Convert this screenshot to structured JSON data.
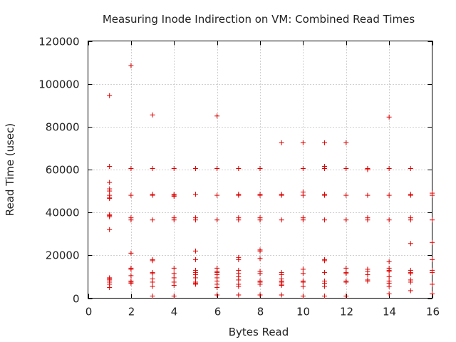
{
  "chart_data": {
    "type": "scatter",
    "title": "Measuring Inode Indirection on VM: Combined Read Times",
    "xlabel": "Bytes Read",
    "ylabel": "Read Time (usec)",
    "xlim": [
      0,
      16
    ],
    "ylim": [
      0,
      120000
    ],
    "xticks": [
      0,
      2,
      4,
      6,
      8,
      10,
      12,
      14,
      16
    ],
    "xtick_labels": [
      "0",
      "2",
      "4",
      "6",
      "8",
      "10",
      "12",
      "14",
      "16"
    ],
    "yticks": [
      0,
      20000,
      40000,
      60000,
      80000,
      100000,
      120000
    ],
    "ytick_labels": [
      "0",
      "20000",
      "40000",
      "60000",
      "80000",
      "100000",
      "120000"
    ],
    "grid": true,
    "marker": "+",
    "color": "#dd0000",
    "points": [
      [
        1,
        94500
      ],
      [
        1,
        61500
      ],
      [
        1,
        54000
      ],
      [
        1,
        51000
      ],
      [
        1,
        50000
      ],
      [
        1,
        48000
      ],
      [
        1,
        47000
      ],
      [
        1,
        46500
      ],
      [
        1,
        39000
      ],
      [
        1,
        38500
      ],
      [
        1,
        38000
      ],
      [
        1,
        32000
      ],
      [
        1,
        9500
      ],
      [
        1,
        9000
      ],
      [
        1,
        8500
      ],
      [
        1,
        7500
      ],
      [
        1,
        6500
      ],
      [
        1,
        5000
      ],
      [
        2,
        108500
      ],
      [
        2,
        60500
      ],
      [
        2,
        48000
      ],
      [
        2,
        37500
      ],
      [
        2,
        36500
      ],
      [
        2,
        21000
      ],
      [
        2,
        14000
      ],
      [
        2,
        13500
      ],
      [
        2,
        10500
      ],
      [
        2,
        8000
      ],
      [
        2,
        7500
      ],
      [
        2,
        7000
      ],
      [
        3,
        85500
      ],
      [
        3,
        60500
      ],
      [
        3,
        48500
      ],
      [
        3,
        48000
      ],
      [
        3,
        36500
      ],
      [
        3,
        18000
      ],
      [
        3,
        17500
      ],
      [
        3,
        12000
      ],
      [
        3,
        11500
      ],
      [
        3,
        9000
      ],
      [
        3,
        7500
      ],
      [
        3,
        5500
      ],
      [
        3,
        1000
      ],
      [
        4,
        60500
      ],
      [
        4,
        48500
      ],
      [
        4,
        48000
      ],
      [
        4,
        47500
      ],
      [
        4,
        37500
      ],
      [
        4,
        36500
      ],
      [
        4,
        14000
      ],
      [
        4,
        11500
      ],
      [
        4,
        9500
      ],
      [
        4,
        7500
      ],
      [
        4,
        6000
      ],
      [
        4,
        1000
      ],
      [
        5,
        60500
      ],
      [
        5,
        48500
      ],
      [
        5,
        37500
      ],
      [
        5,
        36500
      ],
      [
        5,
        22000
      ],
      [
        5,
        18000
      ],
      [
        5,
        13000
      ],
      [
        5,
        12000
      ],
      [
        5,
        11000
      ],
      [
        5,
        9500
      ],
      [
        5,
        7500
      ],
      [
        5,
        7000
      ],
      [
        5,
        6500
      ],
      [
        6,
        85000
      ],
      [
        6,
        60500
      ],
      [
        6,
        48000
      ],
      [
        6,
        36500
      ],
      [
        6,
        14000
      ],
      [
        6,
        12500
      ],
      [
        6,
        12000
      ],
      [
        6,
        11000
      ],
      [
        6,
        9500
      ],
      [
        6,
        8000
      ],
      [
        6,
        6500
      ],
      [
        6,
        5000
      ],
      [
        6,
        1500
      ],
      [
        7,
        60500
      ],
      [
        7,
        48500
      ],
      [
        7,
        48000
      ],
      [
        7,
        37500
      ],
      [
        7,
        36500
      ],
      [
        7,
        19000
      ],
      [
        7,
        18000
      ],
      [
        7,
        13000
      ],
      [
        7,
        11500
      ],
      [
        7,
        10000
      ],
      [
        7,
        8500
      ],
      [
        7,
        6500
      ],
      [
        7,
        5500
      ],
      [
        7,
        1500
      ],
      [
        8,
        60500
      ],
      [
        8,
        48500
      ],
      [
        8,
        48000
      ],
      [
        8,
        37500
      ],
      [
        8,
        36500
      ],
      [
        8,
        22500
      ],
      [
        8,
        22000
      ],
      [
        8,
        18500
      ],
      [
        8,
        12500
      ],
      [
        8,
        11500
      ],
      [
        8,
        8000
      ],
      [
        8,
        7500
      ],
      [
        8,
        6500
      ],
      [
        8,
        1500
      ],
      [
        9,
        72500
      ],
      [
        9,
        48500
      ],
      [
        9,
        48000
      ],
      [
        9,
        36500
      ],
      [
        9,
        12000
      ],
      [
        9,
        11000
      ],
      [
        9,
        9000
      ],
      [
        9,
        8000
      ],
      [
        9,
        7500
      ],
      [
        9,
        6500
      ],
      [
        9,
        6000
      ],
      [
        9,
        1500
      ],
      [
        10,
        72500
      ],
      [
        10,
        60500
      ],
      [
        10,
        49500
      ],
      [
        10,
        48000
      ],
      [
        10,
        37500
      ],
      [
        10,
        36500
      ],
      [
        10,
        13500
      ],
      [
        10,
        11500
      ],
      [
        10,
        8000
      ],
      [
        10,
        7500
      ],
      [
        10,
        5500
      ],
      [
        10,
        1000
      ],
      [
        11,
        72500
      ],
      [
        11,
        61500
      ],
      [
        11,
        60500
      ],
      [
        11,
        48500
      ],
      [
        11,
        48000
      ],
      [
        11,
        36500
      ],
      [
        11,
        18000
      ],
      [
        11,
        17500
      ],
      [
        11,
        12000
      ],
      [
        11,
        8000
      ],
      [
        11,
        7000
      ],
      [
        11,
        5500
      ],
      [
        11,
        1000
      ],
      [
        12,
        72500
      ],
      [
        12,
        60500
      ],
      [
        12,
        48000
      ],
      [
        12,
        36500
      ],
      [
        12,
        14000
      ],
      [
        12,
        12000
      ],
      [
        12,
        11500
      ],
      [
        12,
        8000
      ],
      [
        12,
        7500
      ],
      [
        12,
        1000
      ],
      [
        13,
        60500
      ],
      [
        13,
        60000
      ],
      [
        13,
        48000
      ],
      [
        13,
        37500
      ],
      [
        13,
        36500
      ],
      [
        13,
        13500
      ],
      [
        13,
        12500
      ],
      [
        13,
        11000
      ],
      [
        13,
        8500
      ],
      [
        13,
        8000
      ],
      [
        14,
        84500
      ],
      [
        14,
        60500
      ],
      [
        14,
        48000
      ],
      [
        14,
        36500
      ],
      [
        14,
        17000
      ],
      [
        14,
        14000
      ],
      [
        14,
        13000
      ],
      [
        14,
        12500
      ],
      [
        14,
        10000
      ],
      [
        14,
        8000
      ],
      [
        14,
        7000
      ],
      [
        14,
        5500
      ],
      [
        14,
        2000
      ],
      [
        15,
        60500
      ],
      [
        15,
        48500
      ],
      [
        15,
        48000
      ],
      [
        15,
        37500
      ],
      [
        15,
        36500
      ],
      [
        15,
        25500
      ],
      [
        15,
        13000
      ],
      [
        15,
        12000
      ],
      [
        15,
        11500
      ],
      [
        15,
        8500
      ],
      [
        15,
        7500
      ],
      [
        15,
        3500
      ],
      [
        16,
        49000
      ],
      [
        16,
        48000
      ],
      [
        16,
        36500
      ],
      [
        16,
        26000
      ],
      [
        16,
        18000
      ],
      [
        16,
        13000
      ],
      [
        16,
        12000
      ],
      [
        16,
        6500
      ],
      [
        16,
        2000
      ]
    ]
  }
}
